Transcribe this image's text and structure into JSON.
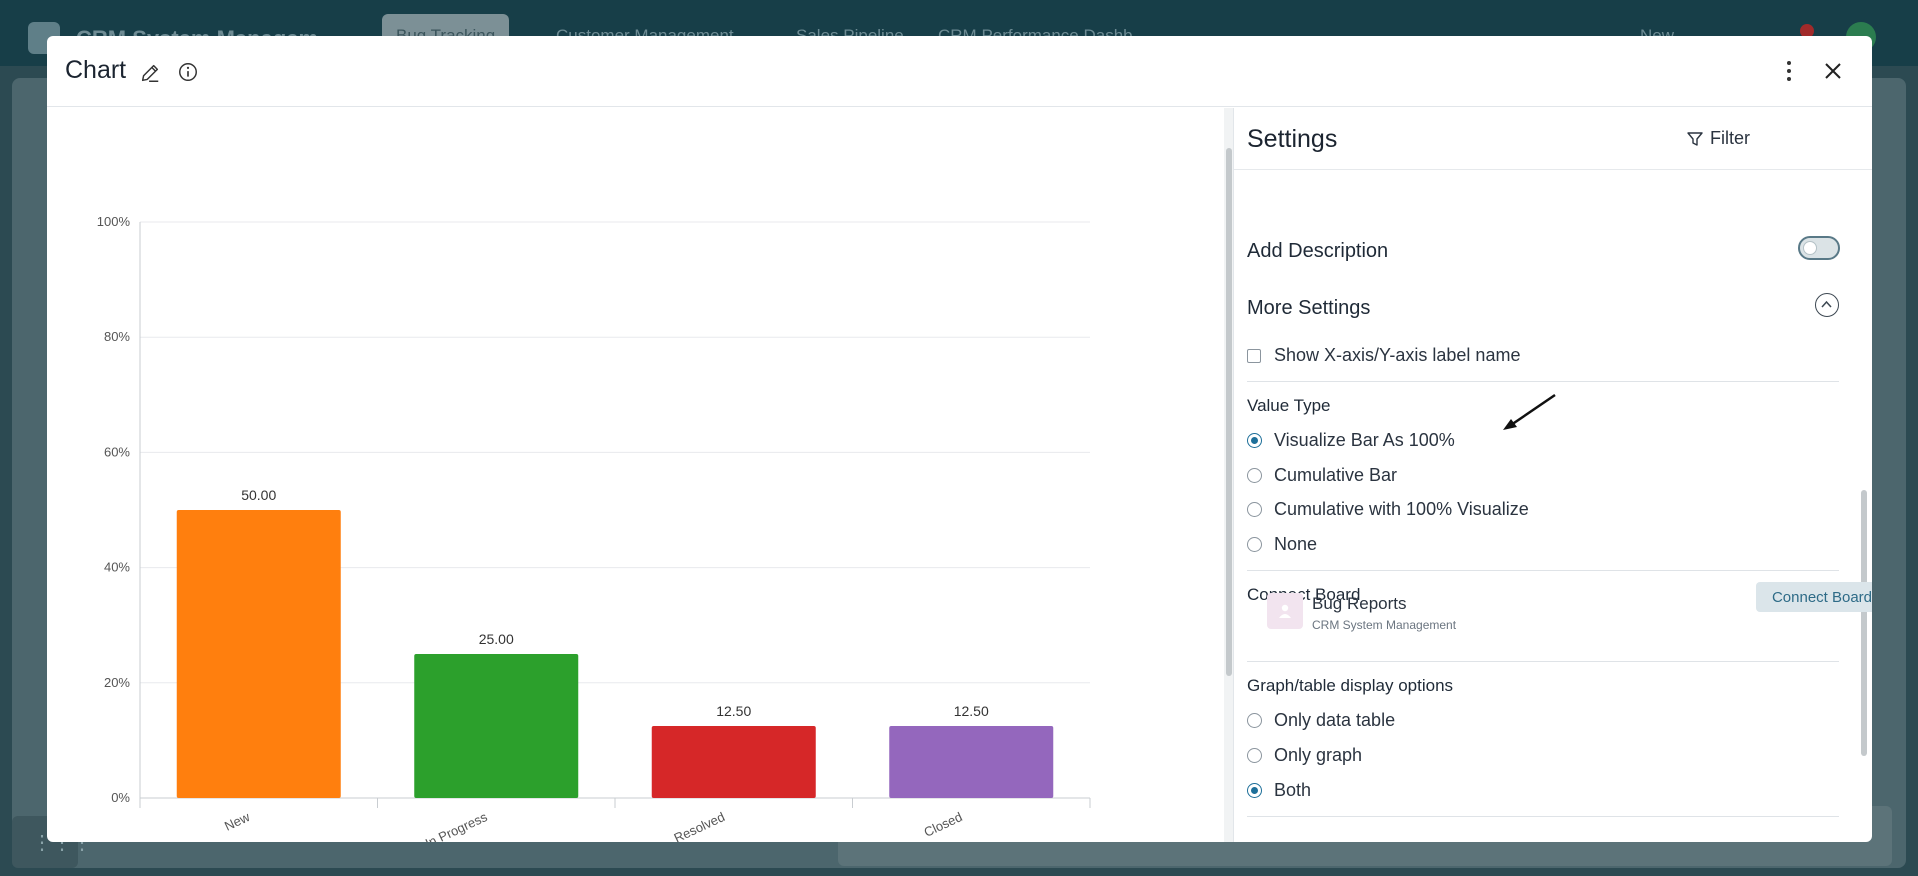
{
  "background": {
    "app_title": "CRM System Managem",
    "tabs": [
      "Bug Tracking",
      "Customer Management",
      "Sales Pipeline",
      "CRM Performance Dashb"
    ],
    "new_label": "New"
  },
  "modal": {
    "title": "Chart",
    "icons": [
      "pencil-icon",
      "info-icon",
      "kebab-menu-icon",
      "close-icon"
    ]
  },
  "chart_data": {
    "type": "bar",
    "categories": [
      "New",
      "In Progress",
      "Resolved",
      "Closed"
    ],
    "values": [
      50.0,
      25.0,
      12.5,
      12.5
    ],
    "value_labels": [
      "50.00",
      "25.00",
      "12.50",
      "12.50"
    ],
    "colors": [
      "#ff7f0e",
      "#2ca02c",
      "#d62728",
      "#9467bd"
    ],
    "y_ticks": [
      "0%",
      "20%",
      "40%",
      "60%",
      "80%",
      "100%"
    ],
    "ylim": [
      0,
      100
    ],
    "grid": true,
    "xlabel": "",
    "ylabel": ""
  },
  "settings": {
    "title": "Settings",
    "filter_label": "Filter",
    "add_description": "Add Description",
    "add_description_on": false,
    "more_settings": "More Settings",
    "show_axis_label": "Show X-axis/Y-axis label name",
    "show_axis_label_checked": false,
    "value_type": {
      "heading": "Value Type",
      "options": [
        "Visualize Bar As 100%",
        "Cumulative Bar",
        "Cumulative with 100% Visualize",
        "None"
      ],
      "selected": "Visualize Bar As 100%"
    },
    "connect_board": {
      "heading": "Connect Board",
      "button": "Connect Board",
      "board_name": "Bug Reports",
      "board_workspace": "CRM System Management"
    },
    "display_options": {
      "heading": "Graph/table display options",
      "options": [
        "Only data table",
        "Only graph",
        "Both"
      ],
      "selected": "Both"
    }
  }
}
